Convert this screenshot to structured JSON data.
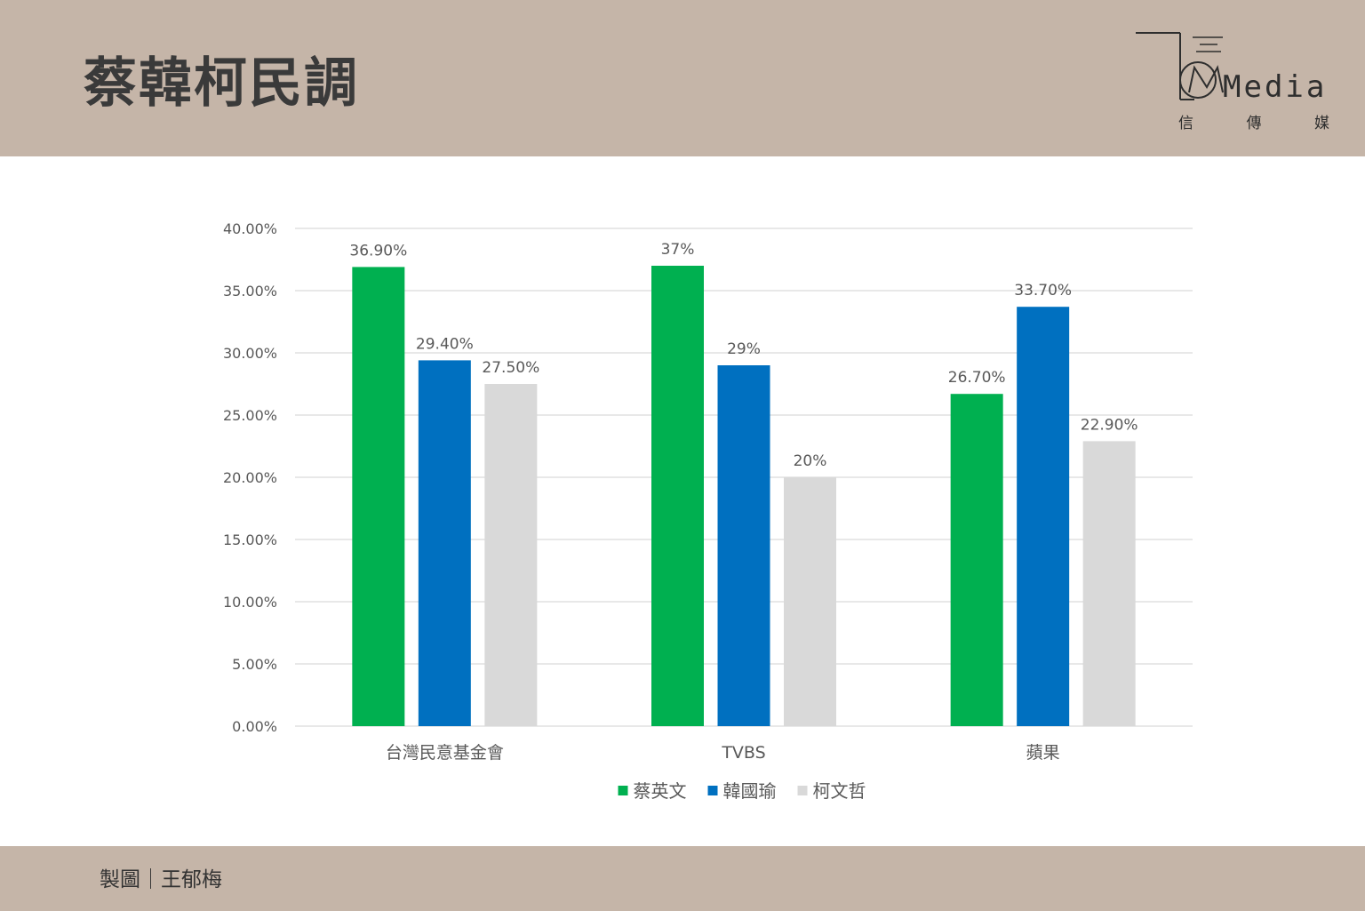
{
  "header": {
    "title": "蔡韓柯民調",
    "logo": {
      "text": "Media",
      "subtitle_chars": [
        "信",
        "傳",
        "媒"
      ]
    }
  },
  "footer": {
    "credit": "製圖｜王郁梅"
  },
  "colors": {
    "band": "#c5b5a8",
    "tsai": "#00b050",
    "han": "#0070c0",
    "ko": "#d9d9d9",
    "axis_text": "#595959",
    "grid": "#d9d9d9"
  },
  "chart_data": {
    "type": "bar",
    "categories": [
      "台灣民意基金會",
      "TVBS",
      "蘋果"
    ],
    "series": [
      {
        "name": "蔡英文",
        "values": [
          36.9,
          37,
          26.7
        ],
        "labels": [
          "36.90%",
          "37%",
          "26.70%"
        ],
        "color": "#00b050"
      },
      {
        "name": "韓國瑜",
        "values": [
          29.4,
          29,
          33.7
        ],
        "labels": [
          "29.40%",
          "29%",
          "33.70%"
        ],
        "color": "#0070c0"
      },
      {
        "name": "柯文哲",
        "values": [
          27.5,
          20,
          22.9
        ],
        "labels": [
          "27.50%",
          "20%",
          "22.90%"
        ],
        "color": "#d9d9d9"
      }
    ],
    "ylim": [
      0,
      40
    ],
    "yticks": [
      "0.00%",
      "5.00%",
      "10.00%",
      "15.00%",
      "20.00%",
      "25.00%",
      "30.00%",
      "35.00%",
      "40.00%"
    ],
    "xlabel": "",
    "ylabel": "",
    "grid": true,
    "legend": "bottom"
  }
}
